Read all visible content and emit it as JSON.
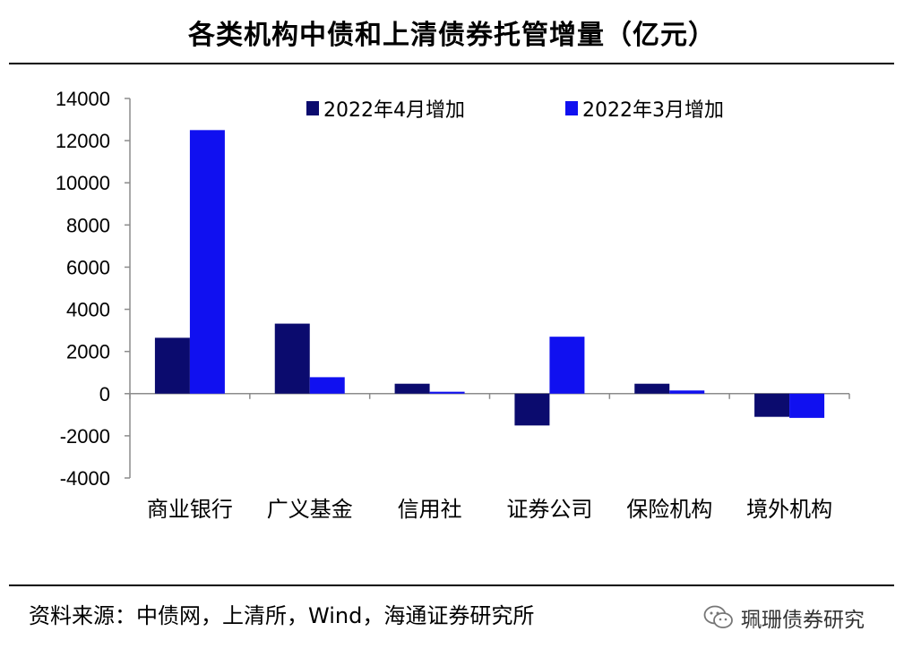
{
  "title": "各类机构中债和上清债券托管增量（亿元）",
  "source": "资料来源：中债网，上清所，Wind，海通证券研究所",
  "watermark": {
    "text": "珮珊债券研究",
    "icon": "wechat-icon"
  },
  "colors": {
    "series_april": "#0b0b6e",
    "series_march": "#1010f0",
    "axis": "#8c8c8c",
    "text": "#000000"
  },
  "chart_data": {
    "type": "bar",
    "title": "各类机构中债和上清债券托管增量（亿元）",
    "categories": [
      "商业银行",
      "广义基金",
      "信用社",
      "证券公司",
      "保险机构",
      "境外机构"
    ],
    "series": [
      {
        "name": "2022年4月增加",
        "values": [
          2650,
          3320,
          470,
          -1510,
          470,
          -1100
        ]
      },
      {
        "name": "2022年3月增加",
        "values": [
          12500,
          780,
          90,
          2700,
          150,
          -1150
        ]
      }
    ],
    "ylim": [
      -4000,
      14000
    ],
    "yticks": [
      -4000,
      -2000,
      0,
      2000,
      4000,
      6000,
      8000,
      10000,
      12000,
      14000
    ],
    "xlabel": "",
    "ylabel": "",
    "grid": false,
    "legend_position": "top"
  }
}
